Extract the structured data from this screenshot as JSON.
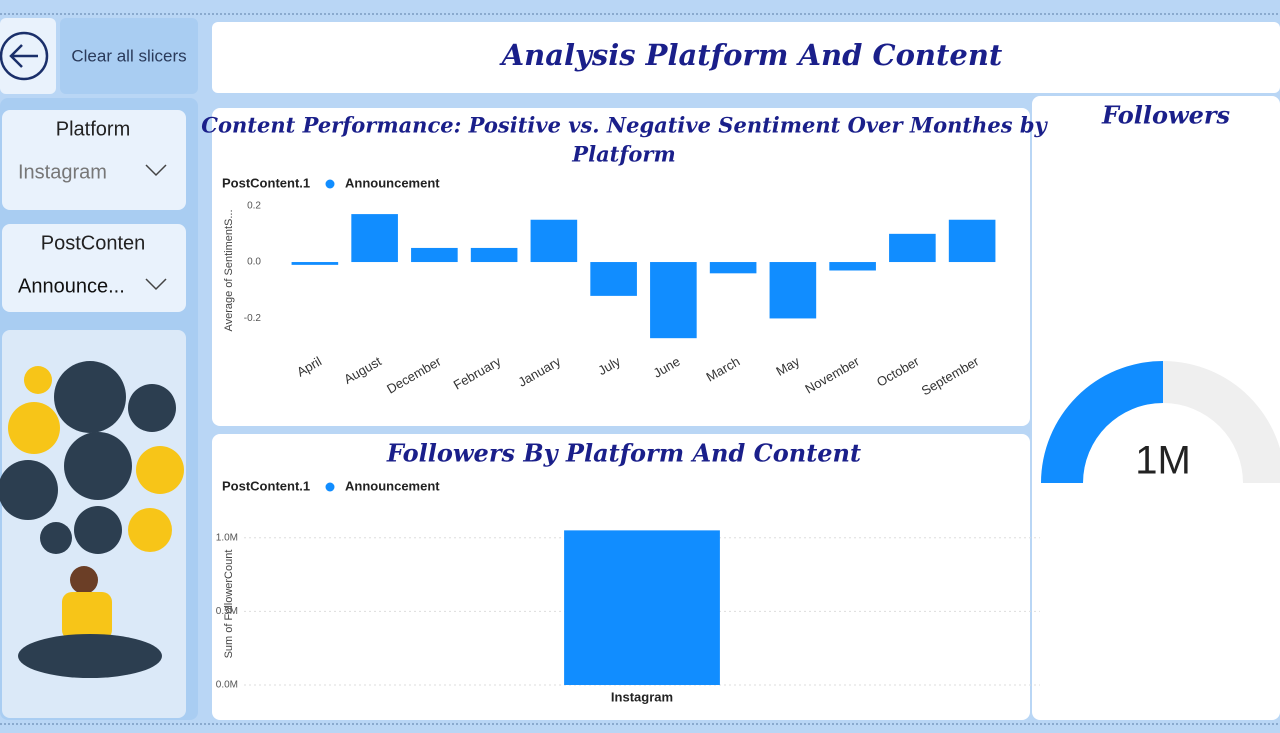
{
  "clear_button": "Clear all slicers",
  "title": "Analysis Platform And Content",
  "slicers": [
    {
      "label": "Platform",
      "value": "Instagram"
    },
    {
      "label": "PostConten",
      "value": "Announce..."
    }
  ],
  "sentiment_chart": {
    "type": "bar",
    "title_lines": [
      "Content Performance: Positive vs. Negative Sentiment Over Monthes by",
      "Platform"
    ],
    "legend_title": "PostContent.1",
    "series_name": "Announcement",
    "color": "#118dff",
    "y_label": "Average of SentimentS...",
    "categories": [
      "April",
      "August",
      "December",
      "February",
      "January",
      "July",
      "June",
      "March",
      "May",
      "November",
      "October",
      "September"
    ],
    "values": [
      -0.01,
      0.17,
      0.05,
      0.05,
      0.15,
      -0.12,
      -0.27,
      -0.04,
      -0.2,
      -0.03,
      0.1,
      0.15
    ],
    "ylim": [
      -0.28,
      0.22
    ],
    "yticks": [
      0.2,
      {
        "value": 0,
        "label": "0.0"
      },
      -0.2
    ]
  },
  "followers_chart": {
    "type": "bar",
    "title": "Followers By Platform And Content",
    "legend_title": "PostContent.1",
    "series_name": "Announcement",
    "color": "#118dff",
    "y_label": "Sum of FollowerCount",
    "categories": [
      "Instagram"
    ],
    "values": [
      1050000
    ],
    "ylim": [
      0,
      1100000
    ],
    "yticks": [
      {
        "value": 0,
        "label": "0.0M"
      },
      {
        "value": 500000,
        "label": "0.5M"
      },
      {
        "value": 1000000,
        "label": "1.0M"
      }
    ],
    "grid": true
  },
  "gauge": {
    "title": "Followers",
    "value": 1050000,
    "value_label": "1M",
    "ylim": [
      0,
      2100000
    ],
    "color": "#118dff"
  }
}
